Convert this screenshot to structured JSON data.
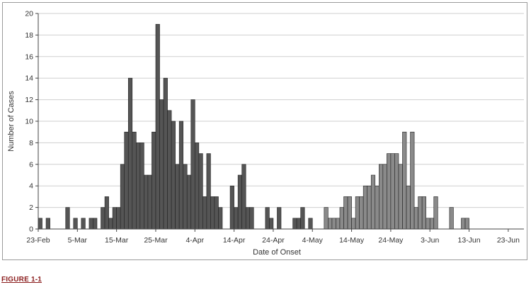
{
  "caption": "FIGURE 1-1",
  "chart_data": {
    "type": "bar",
    "xlabel": "Date of Onset",
    "ylabel": "Number of Cases",
    "ylim": [
      0,
      20
    ],
    "yticks": [
      0,
      2,
      4,
      6,
      8,
      10,
      12,
      14,
      16,
      18,
      20
    ],
    "grid": true,
    "legend": "none",
    "x_start": "23-Feb",
    "x_end": "26-Jun",
    "xtick_labels": [
      "23-Feb",
      "5-Mar",
      "15-Mar",
      "25-Mar",
      "4-Apr",
      "14-Apr",
      "24-Apr",
      "4-May",
      "14-May",
      "24-May",
      "3-Jun",
      "13-Jun",
      "23-Jun"
    ],
    "bar_colors": {
      "early": "#555555",
      "late": "#8a8a8a"
    },
    "series": [
      {
        "values": [
          1,
          0,
          1,
          0,
          0,
          0,
          0,
          2,
          0,
          1,
          0,
          1,
          0,
          1,
          1,
          0,
          2,
          3,
          1,
          2,
          2,
          6,
          9,
          14,
          9,
          8,
          8,
          5,
          5,
          9,
          19,
          12,
          14,
          11,
          10,
          6,
          10,
          6,
          5,
          12,
          8,
          7,
          3,
          7,
          3,
          3,
          2,
          0,
          0,
          4,
          2,
          5,
          6,
          2,
          2,
          0,
          0,
          0,
          2,
          1,
          0,
          2,
          0,
          0,
          0,
          1,
          1,
          2,
          0,
          1,
          0,
          0,
          0,
          2,
          1,
          1,
          1,
          2,
          3,
          3,
          1,
          3,
          3,
          4,
          4,
          5,
          4,
          6,
          6,
          7,
          7,
          7,
          6,
          9,
          4,
          9,
          2,
          3,
          3,
          1,
          1,
          3,
          0,
          0,
          0,
          2,
          0,
          0,
          1,
          1
        ]
      }
    ]
  }
}
